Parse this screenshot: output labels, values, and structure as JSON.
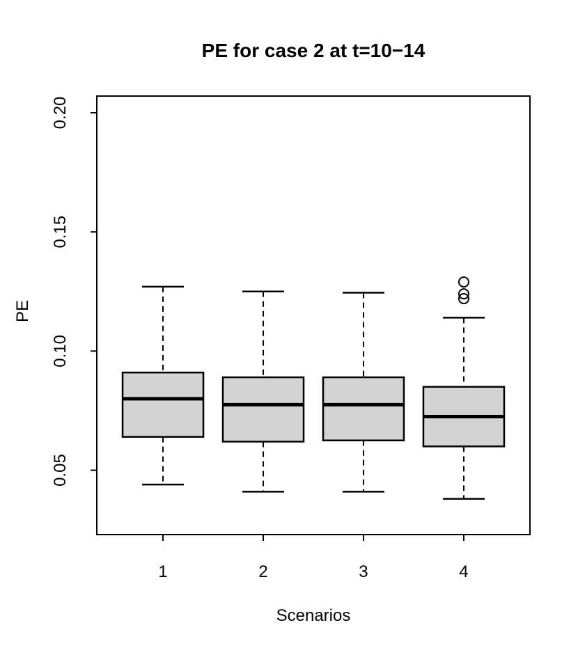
{
  "chart_data": {
    "type": "boxplot",
    "title": "PE for case 2 at t=10−14",
    "xlabel": "Scenarios",
    "ylabel": "PE",
    "categories": [
      "1",
      "2",
      "3",
      "4"
    ],
    "ylim": [
      0.023,
      0.207
    ],
    "y_ticks": [
      {
        "value": 0.05,
        "label": "0.05"
      },
      {
        "value": 0.1,
        "label": "0.10"
      },
      {
        "value": 0.15,
        "label": "0.15"
      },
      {
        "value": 0.2,
        "label": "0.20"
      }
    ],
    "series": [
      {
        "scenario": "1",
        "whisker_low": 0.044,
        "q1": 0.064,
        "median": 0.08,
        "q3": 0.091,
        "whisker_high": 0.127,
        "outliers": []
      },
      {
        "scenario": "2",
        "whisker_low": 0.041,
        "q1": 0.062,
        "median": 0.0775,
        "q3": 0.089,
        "whisker_high": 0.125,
        "outliers": []
      },
      {
        "scenario": "3",
        "whisker_low": 0.041,
        "q1": 0.0625,
        "median": 0.0775,
        "q3": 0.089,
        "whisker_high": 0.1245,
        "outliers": []
      },
      {
        "scenario": "4",
        "whisker_low": 0.038,
        "q1": 0.06,
        "median": 0.0725,
        "q3": 0.085,
        "whisker_high": 0.114,
        "outliers": [
          0.129,
          0.124,
          0.122
        ]
      }
    ],
    "layout": {
      "grid": false,
      "legend": false,
      "whisker_style": "dashed",
      "outlier_marker": "open-circle"
    },
    "colors": {
      "box_fill": "#d3d3d3",
      "stroke": "#000000",
      "background": "#ffffff"
    }
  }
}
